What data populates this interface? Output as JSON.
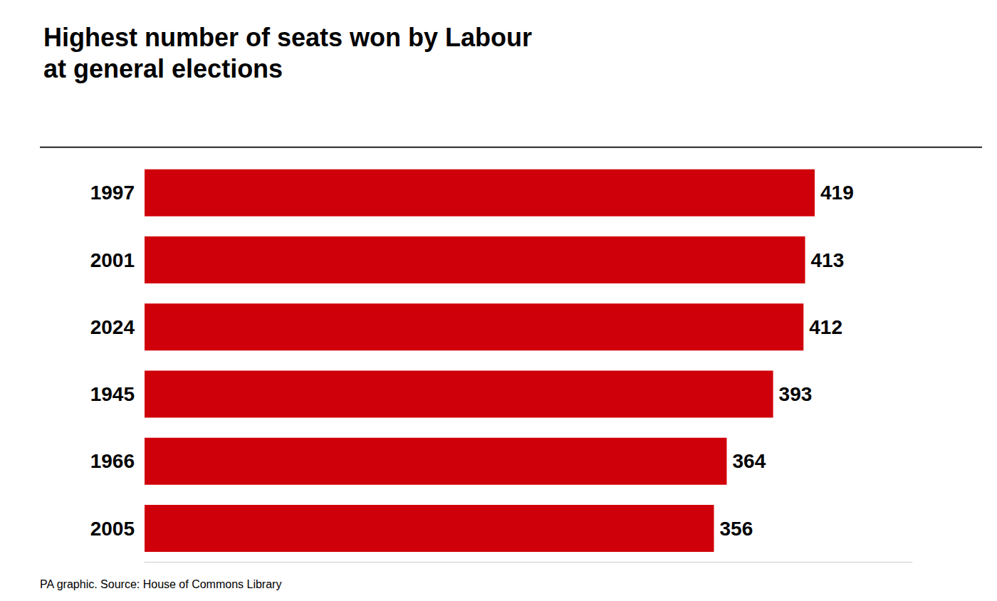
{
  "chart_data": {
    "type": "bar",
    "title": "Highest number of seats won by Labour\nat general elections",
    "categories": [
      "1997",
      "2001",
      "2024",
      "1945",
      "1966",
      "2005"
    ],
    "values": [
      419,
      413,
      412,
      393,
      364,
      356
    ],
    "color": "#D0000A",
    "orientation": "horizontal",
    "xlim": [
      0,
      480
    ],
    "data_labels": true,
    "tick_labels": "y",
    "grid": false,
    "annotations": [
      "PA graphic. Source: House of Commons Library"
    ]
  }
}
